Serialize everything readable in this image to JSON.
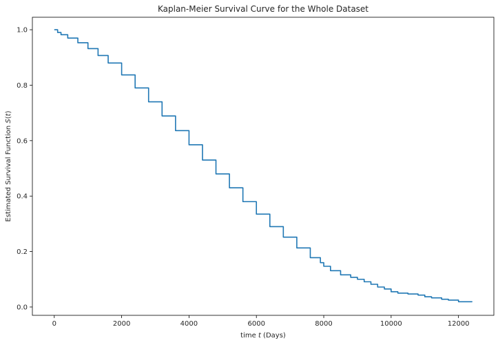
{
  "chart_data": {
    "type": "line",
    "title": "Kaplan-Meier Survival Curve for the Whole Dataset",
    "xlabel": "time t (Days)",
    "xlabel_parts": [
      "time ",
      "t",
      " (Days)"
    ],
    "ylabel": "Estimated Survival Function S(t)",
    "ylabel_parts": [
      "Estimated Survival Function ",
      "S",
      "(",
      "t",
      ")"
    ],
    "xlim": [
      -650,
      13050
    ],
    "ylim": [
      -0.03,
      1.045
    ],
    "xticks": [
      0,
      2000,
      4000,
      6000,
      8000,
      10000,
      12000
    ],
    "xtick_labels": [
      "0",
      "2000",
      "4000",
      "6000",
      "8000",
      "10000",
      "12000"
    ],
    "yticks": [
      0.0,
      0.2,
      0.4,
      0.6,
      0.8,
      1.0
    ],
    "ytick_labels": [
      "0.0",
      "0.2",
      "0.4",
      "0.6",
      "0.8",
      "1.0"
    ],
    "grid": false,
    "legend": "none",
    "series": [
      {
        "color": "#1f77b4",
        "x": [
          0,
          100,
          200,
          400,
          700,
          1000,
          1300,
          1600,
          2000,
          2400,
          2800,
          3200,
          3600,
          4000,
          4400,
          4800,
          5200,
          5600,
          6000,
          6400,
          6800,
          7200,
          7600,
          7900,
          8000,
          8200,
          8500,
          8800,
          9000,
          9200,
          9400,
          9600,
          9800,
          10000,
          10200,
          10500,
          10800,
          11000,
          11200,
          11500,
          11700,
          12000,
          12400
        ],
        "y": [
          1.0,
          0.99,
          0.982,
          0.97,
          0.953,
          0.932,
          0.907,
          0.88,
          0.837,
          0.79,
          0.74,
          0.689,
          0.636,
          0.585,
          0.53,
          0.48,
          0.43,
          0.38,
          0.335,
          0.29,
          0.252,
          0.213,
          0.178,
          0.16,
          0.147,
          0.131,
          0.116,
          0.107,
          0.1,
          0.091,
          0.082,
          0.072,
          0.065,
          0.055,
          0.05,
          0.047,
          0.043,
          0.037,
          0.033,
          0.028,
          0.025,
          0.019,
          0.018
        ]
      }
    ]
  }
}
